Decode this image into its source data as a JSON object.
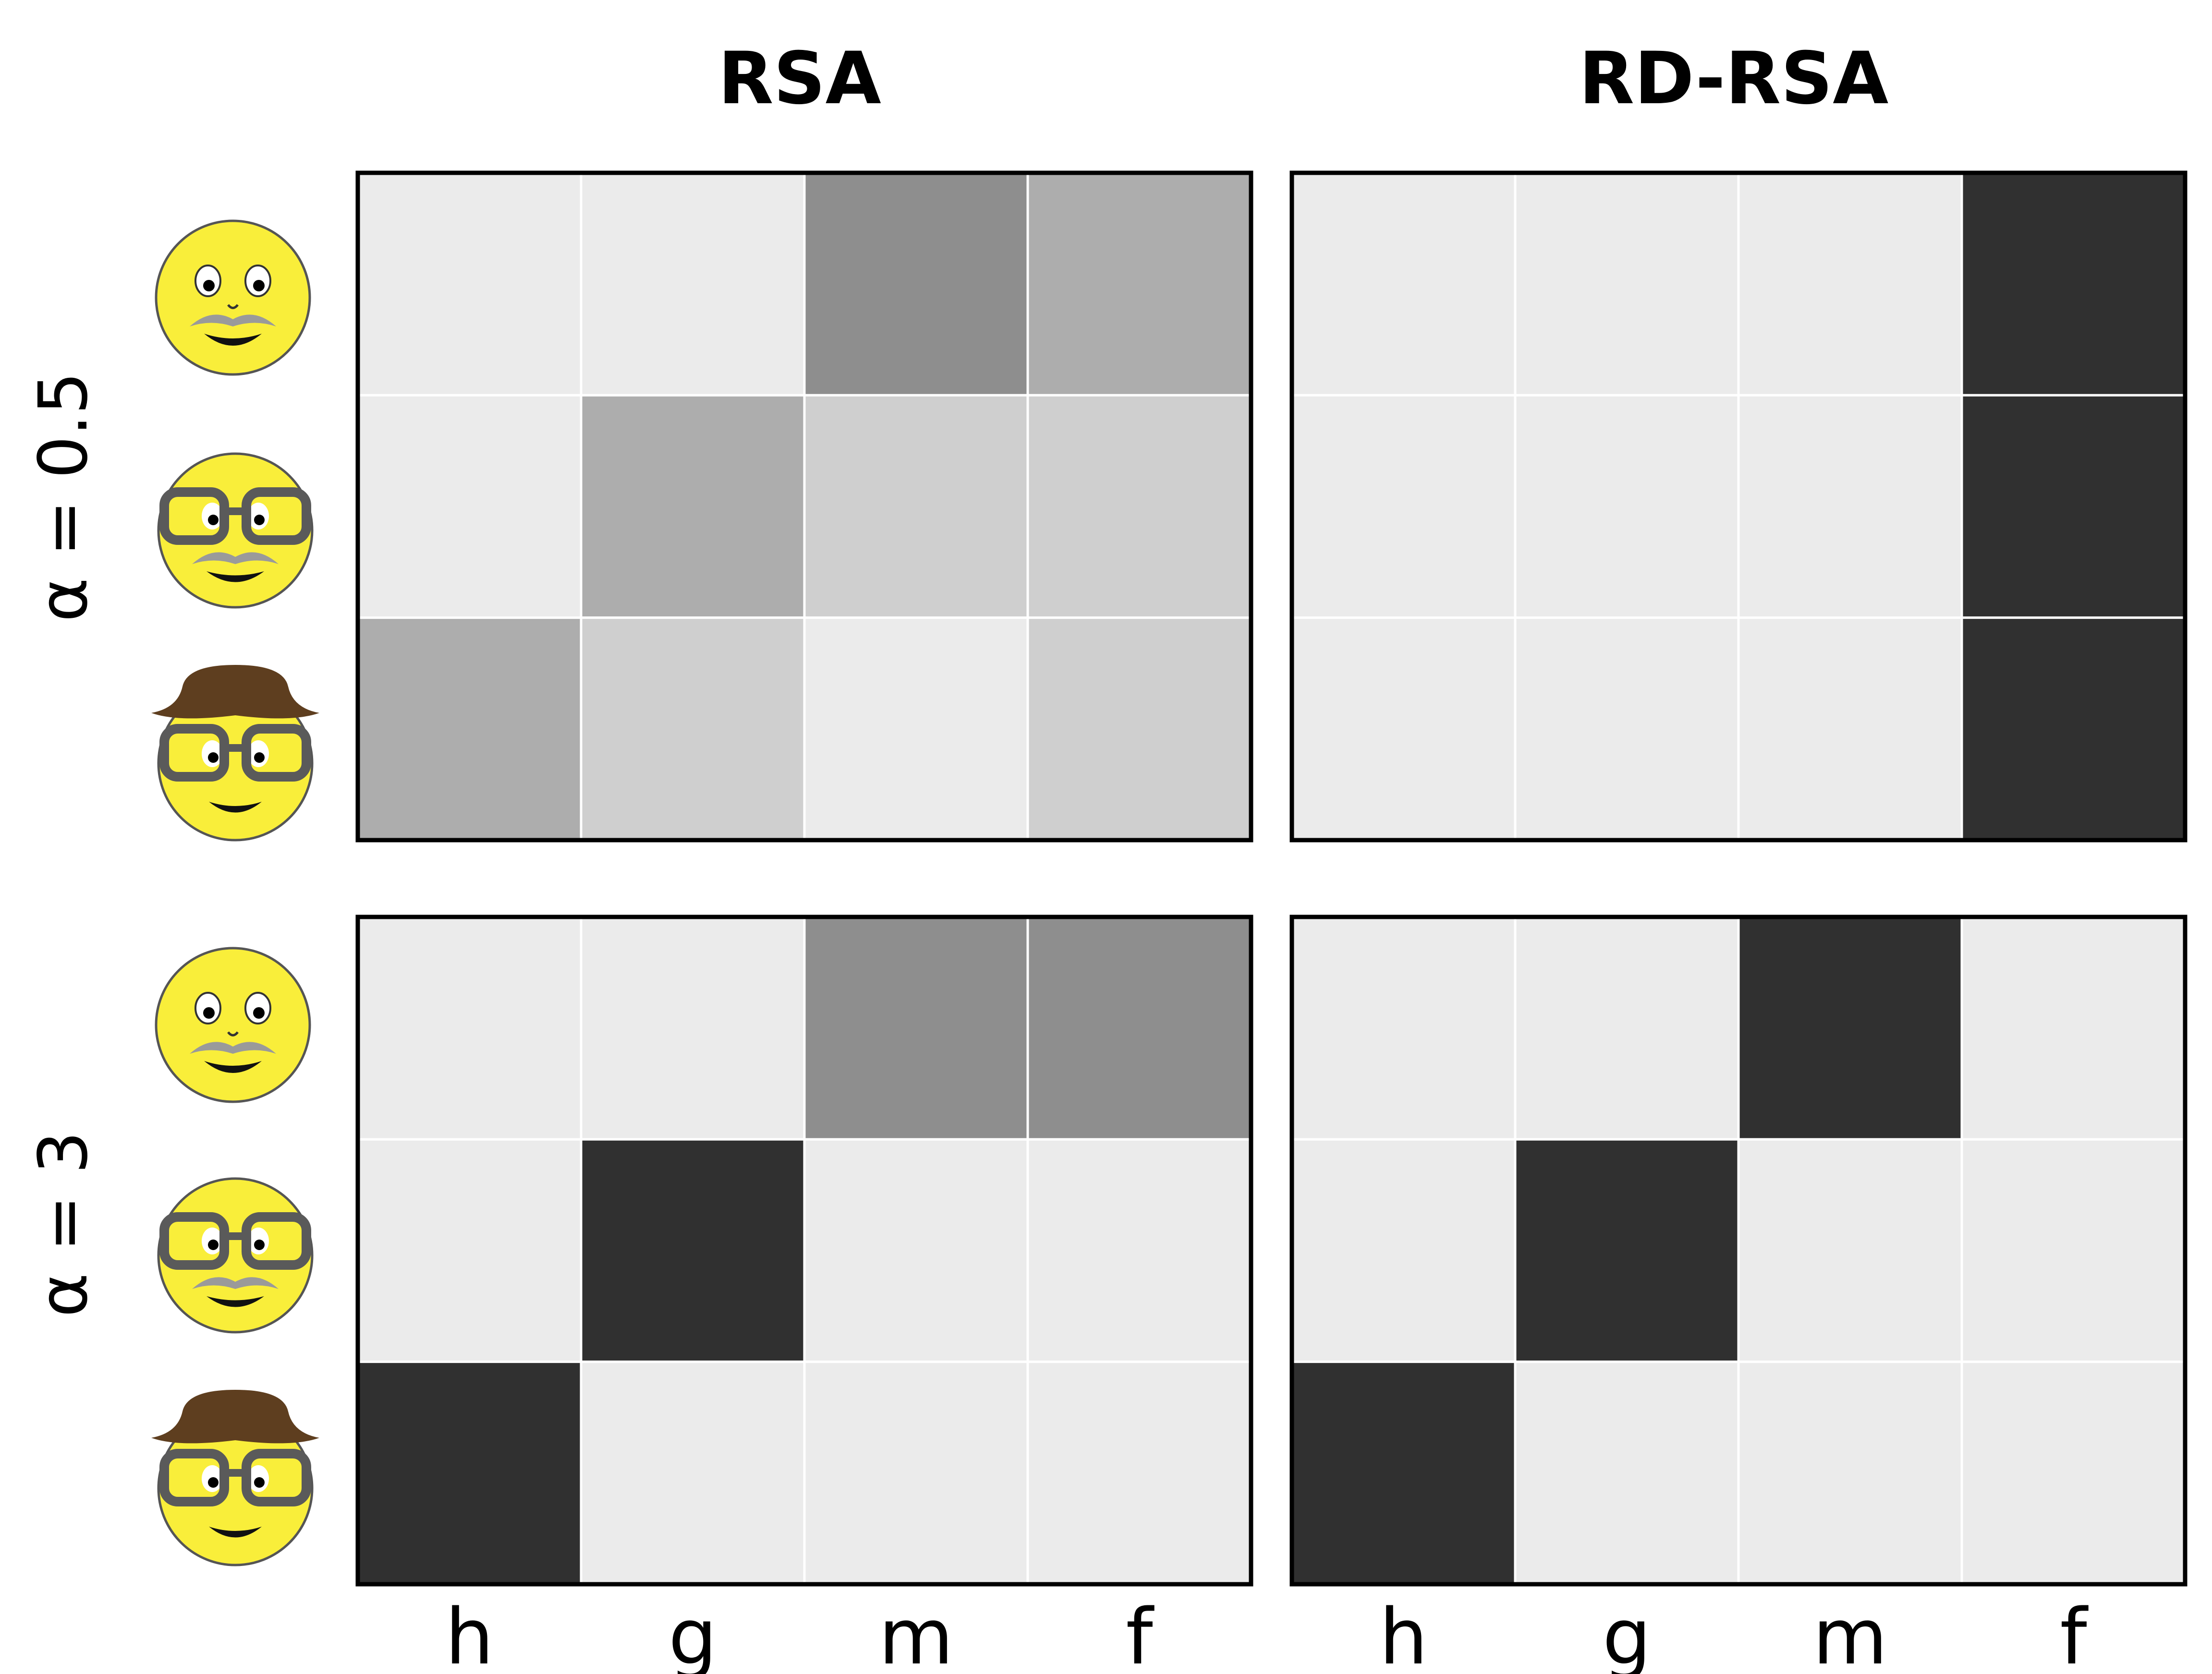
{
  "figure": {
    "column_titles": [
      "RSA",
      "RD-RSA"
    ],
    "row_labels": [
      "α = 0.5",
      "α = 3"
    ]
  },
  "chart_data": {
    "type": "heatmap",
    "x_categories": [
      "h",
      "g",
      "m",
      "f"
    ],
    "y_categories": [
      "mustache-face",
      "glasses-mustache-face",
      "hat-glasses-face"
    ],
    "value_range": [
      0,
      1
    ],
    "colormap": {
      "low": "#ebebeb",
      "high": "#303030"
    },
    "panels": [
      {
        "column": "RSA",
        "row": "α = 0.5",
        "values": [
          [
            0,
            0,
            0.5,
            0.33
          ],
          [
            0,
            0.33,
            0.15,
            0.15
          ],
          [
            0.33,
            0.15,
            0,
            0.15
          ]
        ]
      },
      {
        "column": "RD-RSA",
        "row": "α = 0.5",
        "values": [
          [
            0,
            0,
            0,
            1
          ],
          [
            0,
            0,
            0,
            1
          ],
          [
            0,
            0,
            0,
            1
          ]
        ]
      },
      {
        "column": "RSA",
        "row": "α = 3",
        "values": [
          [
            0,
            0,
            0.5,
            0.5
          ],
          [
            0,
            1,
            0,
            0
          ],
          [
            1,
            0,
            0,
            0
          ]
        ]
      },
      {
        "column": "RD-RSA",
        "row": "α = 3",
        "values": [
          [
            0,
            0,
            1,
            0
          ],
          [
            0,
            1,
            0,
            0
          ],
          [
            1,
            0,
            0,
            0
          ]
        ]
      }
    ]
  },
  "icons": [
    "mustache-face-icon",
    "glasses-mustache-face-icon",
    "hat-glasses-face-icon"
  ],
  "colors": {
    "face": "#f9ee3a",
    "hat": "#5e3e1f",
    "glasses": "#5a5a5a",
    "mustache": "#9a9a9a"
  }
}
